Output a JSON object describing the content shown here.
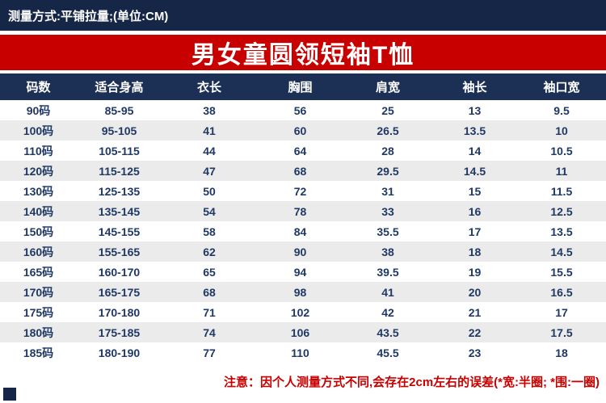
{
  "topbar": {
    "text": "测量方式:平铺拉量;(单位:CM)"
  },
  "banner": {
    "title": "男女童圆领短袖T恤"
  },
  "chart_data": {
    "type": "table",
    "title": "男女童圆领短袖T恤",
    "unit": "CM",
    "columns": [
      "码数",
      "适合身高",
      "衣长",
      "胸围",
      "肩宽",
      "袖长",
      "袖口宽"
    ],
    "rows": [
      [
        "90码",
        "85-95",
        "38",
        "56",
        "25",
        "13",
        "9.5"
      ],
      [
        "100码",
        "95-105",
        "41",
        "60",
        "26.5",
        "13.5",
        "10"
      ],
      [
        "110码",
        "105-115",
        "44",
        "64",
        "28",
        "14",
        "10.5"
      ],
      [
        "120码",
        "115-125",
        "47",
        "68",
        "29.5",
        "14.5",
        "11"
      ],
      [
        "130码",
        "125-135",
        "50",
        "72",
        "31",
        "15",
        "11.5"
      ],
      [
        "140码",
        "135-145",
        "54",
        "78",
        "33",
        "16",
        "12.5"
      ],
      [
        "150码",
        "145-155",
        "58",
        "84",
        "35.5",
        "17",
        "13.5"
      ],
      [
        "160码",
        "155-165",
        "62",
        "90",
        "38",
        "18",
        "14.5"
      ],
      [
        "165码",
        "160-170",
        "65",
        "94",
        "39.5",
        "19",
        "15.5"
      ],
      [
        "170码",
        "165-175",
        "68",
        "98",
        "41",
        "20",
        "16.5"
      ],
      [
        "175码",
        "170-180",
        "71",
        "102",
        "42",
        "21",
        "17"
      ],
      [
        "180码",
        "175-185",
        "74",
        "106",
        "43.5",
        "22",
        "17.5"
      ],
      [
        "185码",
        "180-190",
        "77",
        "110",
        "45.5",
        "23",
        "18"
      ]
    ]
  },
  "footer": {
    "note": "注意：因个人测量方式不同,会存在2cm左右的误差(*宽:半圈; *围:一圈)"
  },
  "colors": {
    "navy": "#152647",
    "header_navy": "#1c2f55",
    "red": "#c80000",
    "cell_text": "#1f3864",
    "row_alt": "#ebebeb"
  }
}
